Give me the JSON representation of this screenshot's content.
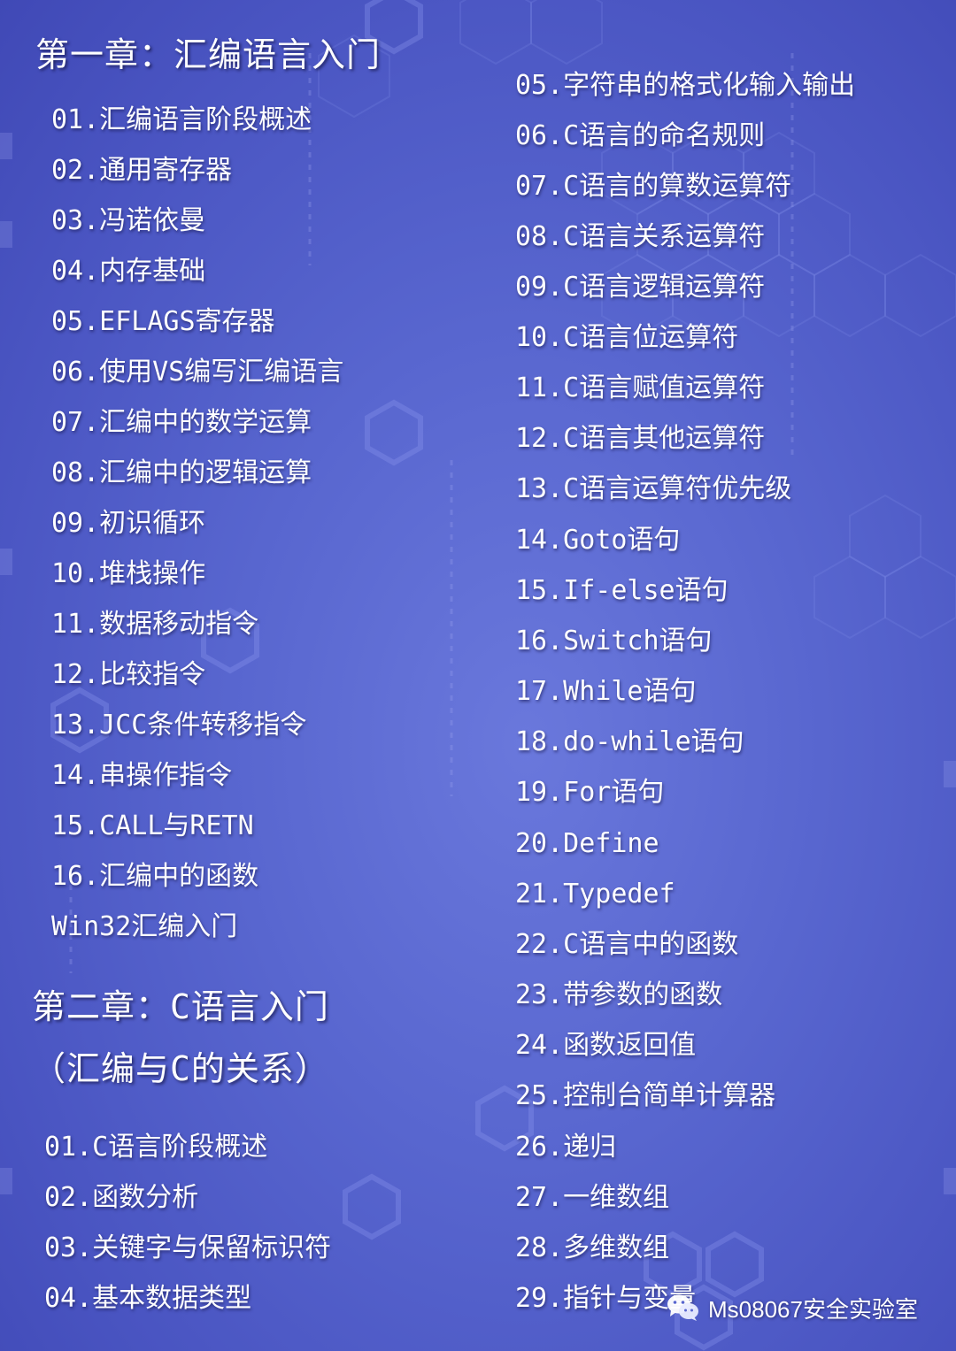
{
  "chapter1": {
    "title": "第一章：汇编语言入门",
    "items": [
      "01.汇编语言阶段概述",
      "02.通用寄存器",
      "03.冯诺依曼",
      "04.内存基础",
      "05.EFLAGS寄存器",
      "06.使用VS编写汇编语言",
      "07.汇编中的数学运算",
      "08.汇编中的逻辑运算",
      "09.初识循环",
      "10.堆栈操作",
      "11.数据移动指令",
      "12.比较指令",
      "13.JCC条件转移指令",
      "14.串操作指令",
      "15.CALL与RETN",
      "16.汇编中的函数",
      "Win32汇编入门"
    ]
  },
  "chapter2": {
    "title": "第二章：C语言入门",
    "subtitle": "（汇编与C的关系）",
    "items": [
      "01.C语言阶段概述",
      "02.函数分析",
      "03.关键字与保留标识符",
      "04.基本数据类型"
    ],
    "right_items": [
      "05.字符串的格式化输入输出",
      "06.C语言的命名规则",
      "07.C语言的算数运算符",
      "08.C语言关系运算符",
      "09.C语言逻辑运算符",
      "10.C语言位运算符",
      "11.C语言赋值运算符",
      "12.C语言其他运算符",
      "13.C语言运算符优先级",
      "14.Goto语句",
      "15.If-else语句",
      "16.Switch语句",
      "17.While语句",
      "18.do-while语句",
      "19.For语句",
      "20.Define",
      "21.Typedef",
      "22.C语言中的函数",
      "23.带参数的函数",
      "24.函数返回值",
      "25.控制台简单计算器",
      "26.递归",
      "27.一维数组",
      "28.多维数组",
      "29.指针与变量"
    ]
  },
  "watermark": {
    "text": "Ms08067安全实验室",
    "icon": "wechat-icon"
  },
  "colors": {
    "background": "#5866cf",
    "text": "#ffffff"
  }
}
